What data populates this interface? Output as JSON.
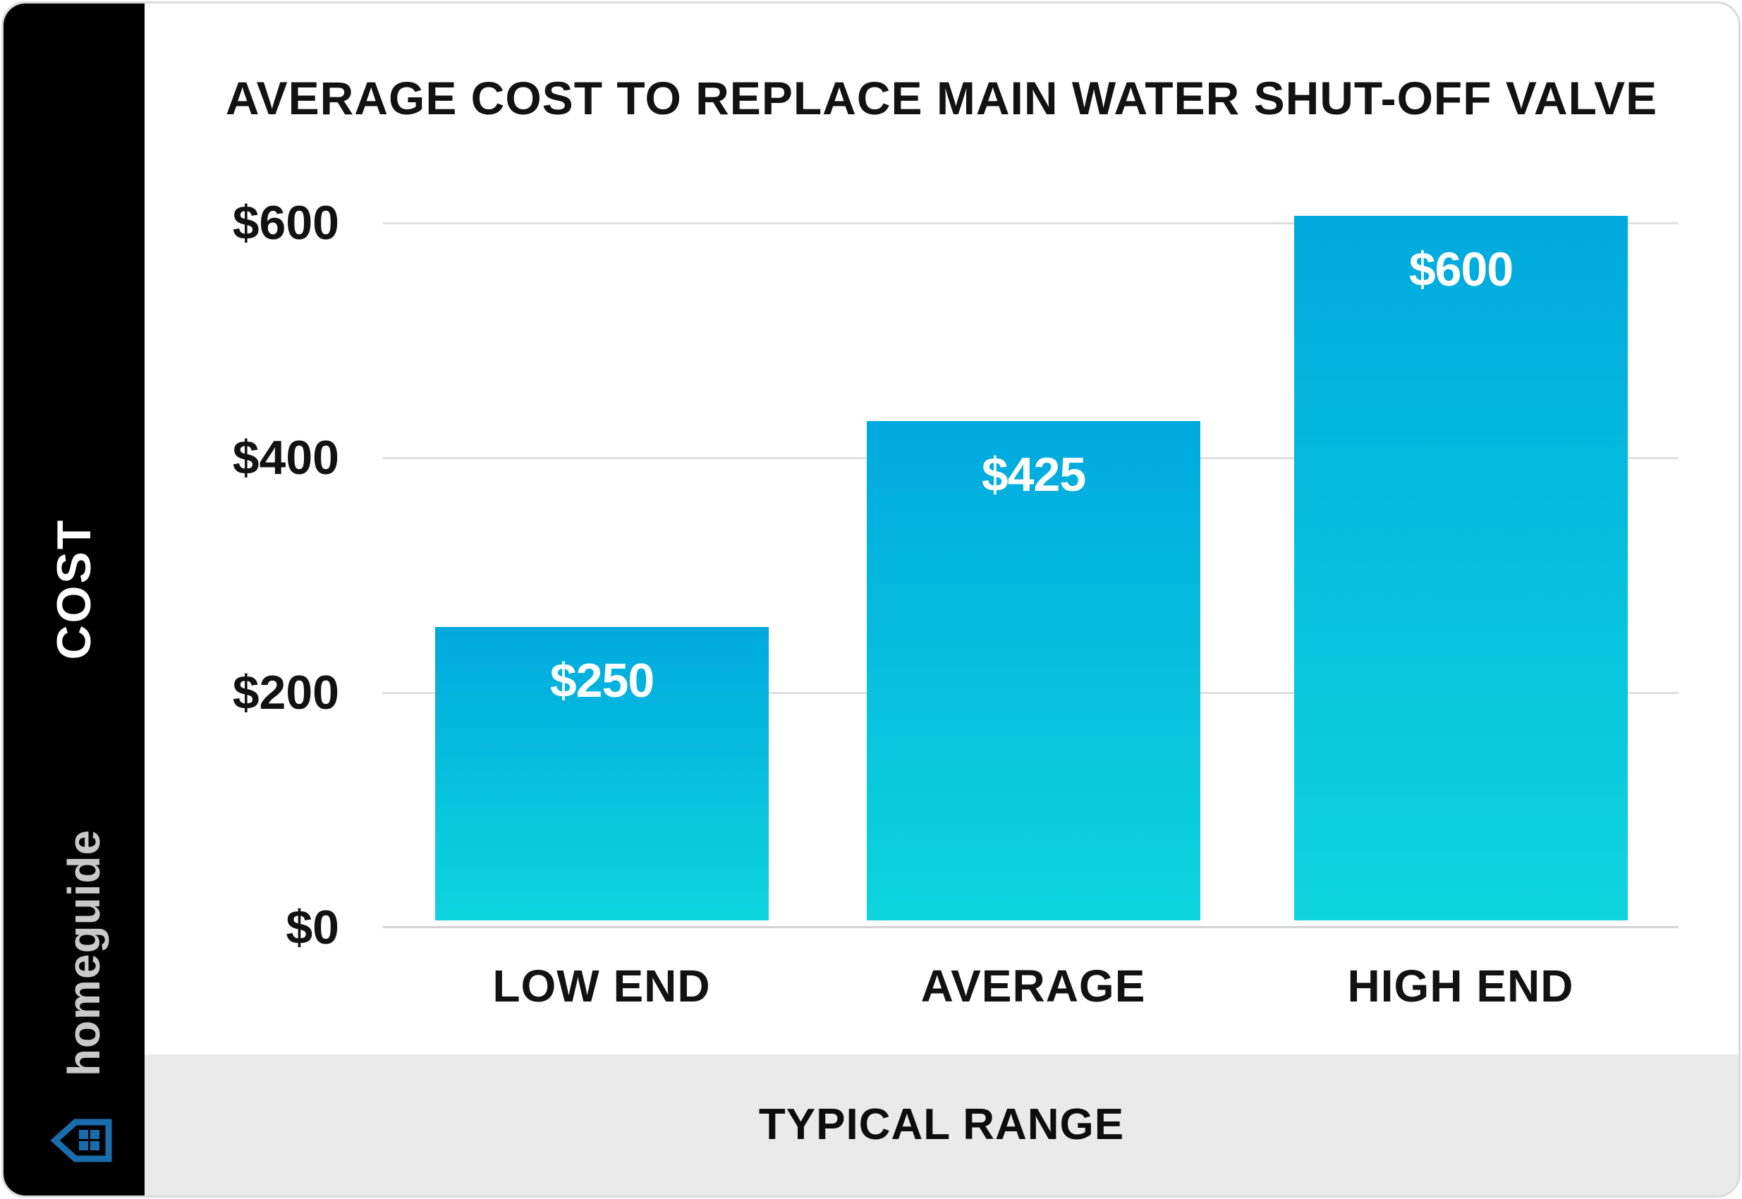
{
  "card": {
    "background": "#ffffff",
    "border_color": "#dadada"
  },
  "sidebar": {
    "background": "#000000",
    "axis_label": "COST",
    "brand": "homeguide",
    "brand_color": "#c9c9c9",
    "icon": "homeguide-house-icon",
    "icon_color": "#1a6dac"
  },
  "chart": {
    "title": "AVERAGE COST TO REPLACE MAIN WATER SHUT-OFF VALVE",
    "y_axis_labels": [
      "$600",
      "$400",
      "$200",
      "$0"
    ],
    "bars": [
      {
        "category": "LOW END",
        "value_label": "$250"
      },
      {
        "category": "AVERAGE",
        "value_label": "$425"
      },
      {
        "category": "HIGH END",
        "value_label": "$600"
      }
    ],
    "bar_gradient_top": "#00a9de",
    "bar_gradient_bottom": "#0ed5de",
    "gridline_color": "#e0e0e0"
  },
  "footer": {
    "label": "TYPICAL RANGE",
    "background": "#eaeaea"
  },
  "chart_data": {
    "type": "bar",
    "categories": [
      "LOW END",
      "AVERAGE",
      "HIGH END"
    ],
    "values": [
      250,
      425,
      600
    ],
    "bar_labels": [
      "$250",
      "$425",
      "$600"
    ],
    "title": "AVERAGE COST TO REPLACE MAIN WATER SHUT-OFF VALVE",
    "xlabel": "TYPICAL RANGE",
    "ylabel": "COST",
    "ylim": [
      0,
      600
    ],
    "yticks": [
      0,
      200,
      400,
      600
    ],
    "ytick_labels": [
      "$0",
      "$200",
      "$400",
      "$600"
    ],
    "grid": "horizontal",
    "legend": "none",
    "bar_color_gradient": [
      "#00a9de",
      "#0ed5de"
    ]
  }
}
